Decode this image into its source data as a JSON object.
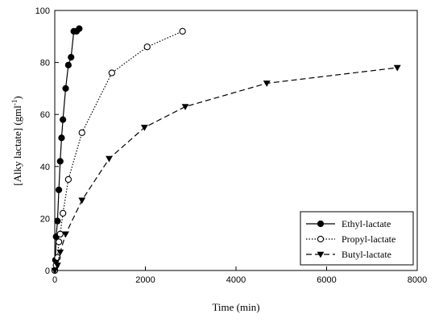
{
  "chart_data": {
    "type": "line",
    "xlabel": "Time (min)",
    "ylabel_main": "[Alky lactate] (gml",
    "ylabel_sup": "-1",
    "ylabel_close": ")",
    "xlim": [
      0,
      8000
    ],
    "ylim": [
      0,
      100
    ],
    "xticks": [
      0,
      2000,
      4000,
      6000,
      8000
    ],
    "yticks": [
      0,
      20,
      40,
      60,
      80,
      100
    ],
    "grid": false,
    "legend_position": "bottom-right",
    "series": [
      {
        "name": "Ethyl-lactate",
        "marker": "filled-circle",
        "line": "solid",
        "color": "#000000",
        "x": [
          0,
          15,
          30,
          60,
          90,
          120,
          150,
          180,
          240,
          300,
          360,
          420,
          480,
          540
        ],
        "y": [
          0,
          4,
          13,
          19,
          31,
          42,
          51,
          58,
          70,
          79,
          82,
          92,
          92,
          93
        ]
      },
      {
        "name": "Propyl-lactate",
        "marker": "open-circle",
        "line": "dotted",
        "color": "#000000",
        "x": [
          0,
          30,
          60,
          90,
          120,
          180,
          300,
          600,
          1260,
          2040,
          2820
        ],
        "y": [
          0,
          2,
          5,
          11,
          14,
          22,
          35,
          53,
          76,
          86,
          92
        ]
      },
      {
        "name": "Butyl-lactate",
        "marker": "filled-triangle-down",
        "line": "dashed",
        "color": "#000000",
        "x": [
          0,
          60,
          120,
          240,
          600,
          1200,
          1980,
          2880,
          4680,
          7560
        ],
        "y": [
          0,
          2,
          7,
          14,
          27,
          43,
          55,
          63,
          72,
          78
        ]
      }
    ]
  }
}
